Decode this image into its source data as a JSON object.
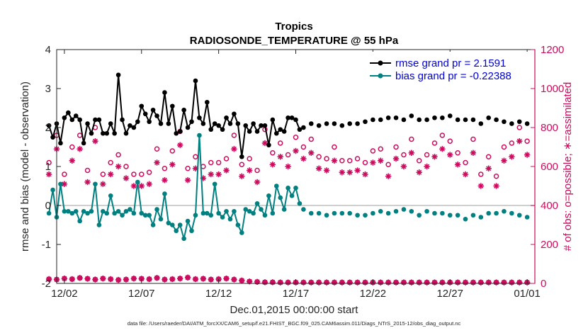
{
  "chart_data": {
    "type": "line",
    "title": "Tropics",
    "subtitle": "RADIOSONDE_TEMPERATURE @ 55 hPa",
    "xlabel": "Dec.01,2015 00:00:00 start",
    "ylabel_left": "rmse and bias (model - observation)",
    "ylabel_right": "# of obs: o=possible; ∗=assimilated",
    "footnote": "data file: /Users/raeder/DAI/ATM_forcXX/CAM6_setup/f.e21.FHIST_BGC.f09_025.CAM6assim.011/Diags_NTrS_2015-12/obs_diag_output.nc",
    "x_range_days": [
      0.5,
      31.5
    ],
    "x_tick_values": [
      1,
      6,
      11,
      16,
      21,
      26,
      31
    ],
    "x_tick_labels": [
      "12/02",
      "12/07",
      "12/12",
      "12/17",
      "12/22",
      "12/27",
      "01/01"
    ],
    "ylim_left": [
      -2,
      4
    ],
    "y_ticks_left": [
      -2,
      -1,
      0,
      1,
      2,
      3,
      4
    ],
    "ylim_right": [
      0,
      1200
    ],
    "y_ticks_right": [
      0,
      200,
      400,
      600,
      800,
      1000,
      1200
    ],
    "legend": {
      "placement": "top-right",
      "entries": [
        "rmse grand pr = 2.1591",
        "bias grand pr = -0.22388"
      ]
    },
    "colors": {
      "rmse": "#000000",
      "bias": "#008080",
      "obs": "#cc0b5e",
      "zero_line": "#bfbfbf"
    },
    "series": [
      {
        "name": "rmse",
        "x": [
          0.0,
          0.25,
          0.5,
          0.75,
          1.0,
          1.25,
          1.5,
          1.75,
          2.0,
          2.25,
          2.5,
          2.75,
          3.0,
          3.25,
          3.5,
          3.75,
          4.0,
          4.25,
          4.5,
          4.75,
          5.0,
          5.25,
          5.5,
          5.75,
          6.0,
          6.25,
          6.5,
          6.75,
          7.0,
          7.25,
          7.5,
          7.75,
          8.0,
          8.25,
          8.5,
          8.75,
          9.0,
          9.25,
          9.5,
          9.75,
          10.0,
          10.25,
          10.5,
          10.75,
          11.0,
          11.25,
          11.5,
          11.75,
          12.0,
          12.25,
          12.5,
          12.75,
          13.0,
          13.25,
          13.5,
          13.75,
          14.0,
          14.25,
          14.5,
          14.75,
          15.0,
          15.25,
          15.5,
          15.75,
          16.0,
          16.25
        ],
        "values": [
          2.05,
          1.75,
          2.1,
          1.6,
          2.25,
          2.38,
          2.2,
          2.3,
          2.2,
          1.6,
          2.1,
          1.85,
          2.2,
          2.2,
          1.85,
          1.85,
          2.1,
          1.85,
          3.35,
          2.2,
          1.85,
          2.05,
          2.0,
          2.15,
          2.55,
          2.35,
          2.15,
          2.45,
          2.3,
          2.1,
          2.9,
          2.1,
          2.55,
          1.85,
          1.9,
          2.45,
          2.0,
          2.15,
          3.2,
          2.25,
          2.1,
          2.65,
          1.95,
          2.1,
          2.05,
          1.95,
          2.25,
          2.1,
          2.35,
          2.1,
          1.25,
          2.05,
          1.9,
          2.1,
          1.9,
          2.05,
          2.05,
          1.55,
          2.2,
          1.85,
          1.95,
          1.9,
          2.25,
          2.25,
          2.2,
          1.95
        ]
      },
      {
        "name": "rmse_markers_only",
        "x": [
          16.5,
          17.0,
          17.5,
          18.0,
          18.5,
          19.0,
          19.5,
          20.0,
          20.5,
          21.0,
          21.5,
          22.0,
          22.5,
          23.0,
          23.5,
          24.0,
          24.5,
          25.0,
          25.5,
          26.0,
          26.5,
          27.0,
          27.5,
          28.0,
          28.5,
          29.0,
          29.5,
          30.0,
          30.5,
          31.0
        ],
        "values": [
          2.0,
          2.1,
          2.05,
          2.1,
          2.1,
          2.05,
          2.1,
          2.1,
          2.15,
          2.2,
          2.2,
          2.25,
          2.25,
          2.2,
          2.3,
          2.2,
          2.2,
          2.25,
          2.25,
          2.3,
          2.2,
          2.2,
          2.2,
          2.1,
          2.25,
          2.2,
          2.15,
          2.1,
          2.15,
          2.1
        ]
      },
      {
        "name": "bias",
        "x": [
          0.0,
          0.25,
          0.5,
          0.75,
          1.0,
          1.25,
          1.5,
          1.75,
          2.0,
          2.25,
          2.5,
          2.75,
          3.0,
          3.25,
          3.5,
          3.75,
          4.0,
          4.25,
          4.5,
          4.75,
          5.0,
          5.25,
          5.5,
          5.75,
          6.0,
          6.25,
          6.5,
          6.75,
          7.0,
          7.25,
          7.5,
          7.75,
          8.0,
          8.25,
          8.5,
          8.75,
          9.0,
          9.25,
          9.5,
          9.75,
          10.0,
          10.25,
          10.5,
          10.75,
          11.0,
          11.25,
          11.5,
          11.75,
          12.0,
          12.25,
          12.5,
          12.75,
          13.0,
          13.25,
          13.5,
          13.75,
          14.0,
          14.25,
          14.5,
          14.75,
          15.0,
          15.25,
          15.5,
          15.75,
          16.0,
          16.25
        ],
        "values": [
          -0.2,
          0.4,
          -0.3,
          0.55,
          -0.15,
          -0.15,
          -0.2,
          -0.15,
          -0.4,
          -0.15,
          -0.2,
          -0.15,
          0.55,
          -0.5,
          -0.15,
          -0.2,
          0.25,
          -0.2,
          -0.15,
          -0.25,
          -0.15,
          -0.1,
          -0.2,
          0.6,
          -0.2,
          -0.25,
          -0.25,
          -0.5,
          -0.1,
          -0.35,
          0.3,
          -0.45,
          -0.5,
          -0.65,
          -0.5,
          -0.85,
          -0.4,
          -0.65,
          -0.25,
          1.8,
          -0.2,
          -0.2,
          -0.25,
          0.55,
          -0.2,
          -0.3,
          -0.15,
          -0.35,
          -0.15,
          -0.5,
          -0.7,
          -0.1,
          -0.15,
          -0.2,
          0.05,
          -0.1,
          -0.25,
          0.25,
          -0.2,
          0.5,
          0.2,
          -0.1,
          0.45,
          0.25,
          0.45,
          0.05
        ]
      },
      {
        "name": "bias_markers_only",
        "x": [
          16.5,
          17.0,
          17.5,
          18.0,
          18.5,
          19.0,
          19.5,
          20.0,
          20.5,
          21.0,
          21.5,
          22.0,
          22.5,
          23.0,
          23.5,
          24.0,
          24.5,
          25.0,
          25.5,
          26.0,
          26.5,
          27.0,
          27.5,
          28.0,
          28.5,
          29.0,
          29.5,
          30.0,
          30.5,
          31.0
        ],
        "values": [
          -0.1,
          -0.2,
          -0.2,
          -0.25,
          -0.2,
          -0.2,
          -0.2,
          -0.25,
          -0.25,
          -0.2,
          -0.15,
          -0.2,
          -0.15,
          -0.1,
          -0.15,
          -0.25,
          -0.15,
          -0.2,
          -0.2,
          -0.25,
          -0.25,
          -0.35,
          -0.25,
          -0.3,
          -0.2,
          -0.2,
          -0.15,
          -0.2,
          -0.25,
          -0.3
        ]
      },
      {
        "name": "obs_possible",
        "x": [
          0.0,
          0.5,
          1.0,
          1.5,
          2.0,
          2.5,
          3.0,
          3.5,
          4.0,
          4.5,
          5.0,
          5.5,
          6.0,
          6.5,
          7.0,
          7.5,
          8.0,
          8.5,
          9.0,
          9.5,
          10.0,
          10.5,
          11.0,
          11.5,
          12.0,
          12.5,
          13.0,
          13.5,
          14.0,
          14.5,
          15.0,
          15.5,
          16.0,
          16.5,
          17.0,
          17.5,
          18.0,
          18.5,
          19.0,
          19.5,
          20.0,
          20.5,
          21.0,
          21.5,
          22.0,
          22.5,
          23.0,
          23.5,
          24.0,
          24.5,
          25.0,
          25.5,
          26.0,
          26.5,
          27.0,
          27.5,
          28.0,
          28.5,
          29.0,
          29.5,
          30.0,
          30.5,
          31.0
        ],
        "values": [
          620,
          760,
          560,
          700,
          760,
          580,
          800,
          560,
          620,
          660,
          600,
          560,
          560,
          570,
          690,
          590,
          680,
          780,
          590,
          650,
          600,
          620,
          620,
          640,
          760,
          610,
          640,
          580,
          790,
          670,
          720,
          660,
          750,
          700,
          740,
          650,
          640,
          700,
          630,
          630,
          640,
          620,
          680,
          690,
          610,
          700,
          660,
          740,
          630,
          660,
          720,
          760,
          730,
          670,
          620,
          740,
          560,
          650,
          550,
          700,
          720,
          800,
          730
        ]
      },
      {
        "name": "obs_assimilated",
        "x": [
          0.0,
          0.5,
          1.0,
          1.5,
          2.0,
          2.5,
          3.0,
          3.5,
          4.0,
          4.5,
          5.0,
          5.5,
          6.0,
          6.5,
          7.0,
          7.5,
          8.0,
          8.5,
          9.0,
          9.5,
          10.0,
          10.5,
          11.0,
          11.5,
          12.0,
          12.5,
          13.0,
          13.5,
          14.0,
          14.5,
          15.0,
          15.5,
          16.0,
          16.5,
          17.0,
          17.5,
          18.0,
          18.5,
          19.0,
          19.5,
          20.0,
          20.5,
          21.0,
          21.5,
          22.0,
          22.5,
          23.0,
          23.5,
          24.0,
          24.5,
          25.0,
          25.5,
          26.0,
          26.5,
          27.0,
          27.5,
          28.0,
          28.5,
          29.0,
          29.5,
          30.0,
          30.5,
          31.0
        ],
        "values": [
          560,
          690,
          510,
          630,
          690,
          520,
          730,
          510,
          560,
          600,
          540,
          500,
          500,
          510,
          620,
          530,
          610,
          710,
          530,
          590,
          540,
          560,
          560,
          580,
          690,
          550,
          580,
          520,
          720,
          610,
          650,
          600,
          680,
          640,
          670,
          590,
          580,
          630,
          570,
          570,
          580,
          560,
          620,
          630,
          550,
          640,
          600,
          670,
          570,
          600,
          650,
          690,
          660,
          610,
          560,
          670,
          500,
          590,
          500,
          630,
          650,
          730,
          660
        ]
      },
      {
        "name": "obs_rejected",
        "x": [
          0.0,
          0.5,
          1.0,
          1.5,
          2.0,
          2.5,
          3.0,
          3.5,
          4.0,
          4.5,
          5.0,
          5.5,
          6.0,
          6.5,
          7.0,
          7.5,
          8.0,
          8.5,
          9.0,
          9.5,
          10.0,
          10.5,
          11.0,
          11.5,
          12.0,
          12.5,
          13.0,
          13.5,
          14.0,
          14.5,
          15.0,
          15.5,
          16.0,
          16.5,
          17.0,
          17.5,
          18.0,
          18.5,
          19.0,
          19.5,
          20.0,
          20.5,
          21.0,
          21.5,
          22.0,
          22.5,
          23.0,
          23.5,
          24.0,
          24.5,
          25.0,
          25.5,
          26.0,
          26.5,
          27.0,
          27.5,
          28.0,
          28.5,
          29.0,
          29.5,
          30.0,
          30.5,
          31.0
        ],
        "values": [
          22,
          20,
          25,
          22,
          28,
          24,
          20,
          25,
          22,
          18,
          20,
          25,
          24,
          22,
          28,
          20,
          22,
          25,
          30,
          22,
          24,
          20,
          22,
          25,
          20,
          15,
          10,
          8,
          6,
          6,
          5,
          5,
          5,
          5,
          5,
          5,
          5,
          5,
          5,
          5,
          5,
          5,
          5,
          5,
          5,
          5,
          5,
          5,
          5,
          5,
          5,
          5,
          5,
          5,
          5,
          5,
          5,
          5,
          5,
          5,
          5,
          5,
          5
        ]
      }
    ]
  }
}
